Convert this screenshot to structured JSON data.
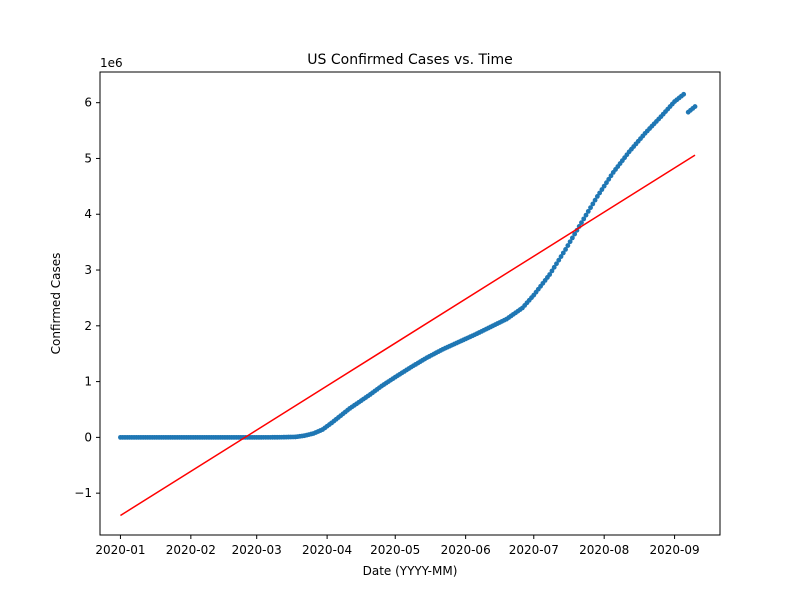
{
  "chart_data": {
    "type": "scatter",
    "title": "US Confirmed Cases vs. Time",
    "xlabel": "Date (YYYY-MM)",
    "ylabel": "Confirmed Cases",
    "y_scale_label": "1e6",
    "x_ticks": [
      "2020-01",
      "2020-02",
      "2020-03",
      "2020-04",
      "2020-05",
      "2020-06",
      "2020-07",
      "2020-08",
      "2020-09"
    ],
    "y_ticks": [
      -1,
      0,
      1,
      2,
      3,
      4,
      5,
      6
    ],
    "y_tick_labels": [
      "−1",
      "0",
      "1",
      "2",
      "3",
      "4",
      "5",
      "6"
    ],
    "xlim": [
      "2019-12-23",
      "2020-09-21"
    ],
    "ylim": [
      -1.75,
      6.55
    ],
    "grid": false,
    "series": [
      {
        "kind": "scatter",
        "color": "#1f77b4",
        "points": [
          [
            "2020-01-01",
            0
          ],
          [
            "2020-02-01",
            0
          ],
          [
            "2020-03-01",
            0
          ],
          [
            "2020-03-10",
            0.001
          ],
          [
            "2020-03-18",
            0.008
          ],
          [
            "2020-03-22",
            0.03
          ],
          [
            "2020-03-26",
            0.07
          ],
          [
            "2020-03-30",
            0.14
          ],
          [
            "2020-04-03",
            0.26
          ],
          [
            "2020-04-07",
            0.39
          ],
          [
            "2020-04-11",
            0.52
          ],
          [
            "2020-04-15",
            0.63
          ],
          [
            "2020-04-20",
            0.77
          ],
          [
            "2020-04-25",
            0.92
          ],
          [
            "2020-05-01",
            1.08
          ],
          [
            "2020-05-08",
            1.26
          ],
          [
            "2020-05-15",
            1.43
          ],
          [
            "2020-05-22",
            1.58
          ],
          [
            "2020-05-29",
            1.71
          ],
          [
            "2020-06-05",
            1.84
          ],
          [
            "2020-06-12",
            1.98
          ],
          [
            "2020-06-19",
            2.12
          ],
          [
            "2020-06-26",
            2.32
          ],
          [
            "2020-07-01",
            2.55
          ],
          [
            "2020-07-08",
            2.92
          ],
          [
            "2020-07-15",
            3.37
          ],
          [
            "2020-07-22",
            3.85
          ],
          [
            "2020-07-29",
            4.32
          ],
          [
            "2020-08-05",
            4.75
          ],
          [
            "2020-08-12",
            5.12
          ],
          [
            "2020-08-19",
            5.45
          ],
          [
            "2020-08-26",
            5.75
          ],
          [
            "2020-09-01",
            6.02
          ],
          [
            "2020-09-05",
            6.15
          ],
          [
            "2020-09-07",
            5.83
          ],
          [
            "2020-09-10",
            5.93
          ]
        ]
      },
      {
        "kind": "line",
        "color": "#ff0000",
        "points": [
          [
            "2020-01-01",
            -1.4
          ],
          [
            "2020-09-10",
            5.06
          ]
        ]
      }
    ]
  }
}
